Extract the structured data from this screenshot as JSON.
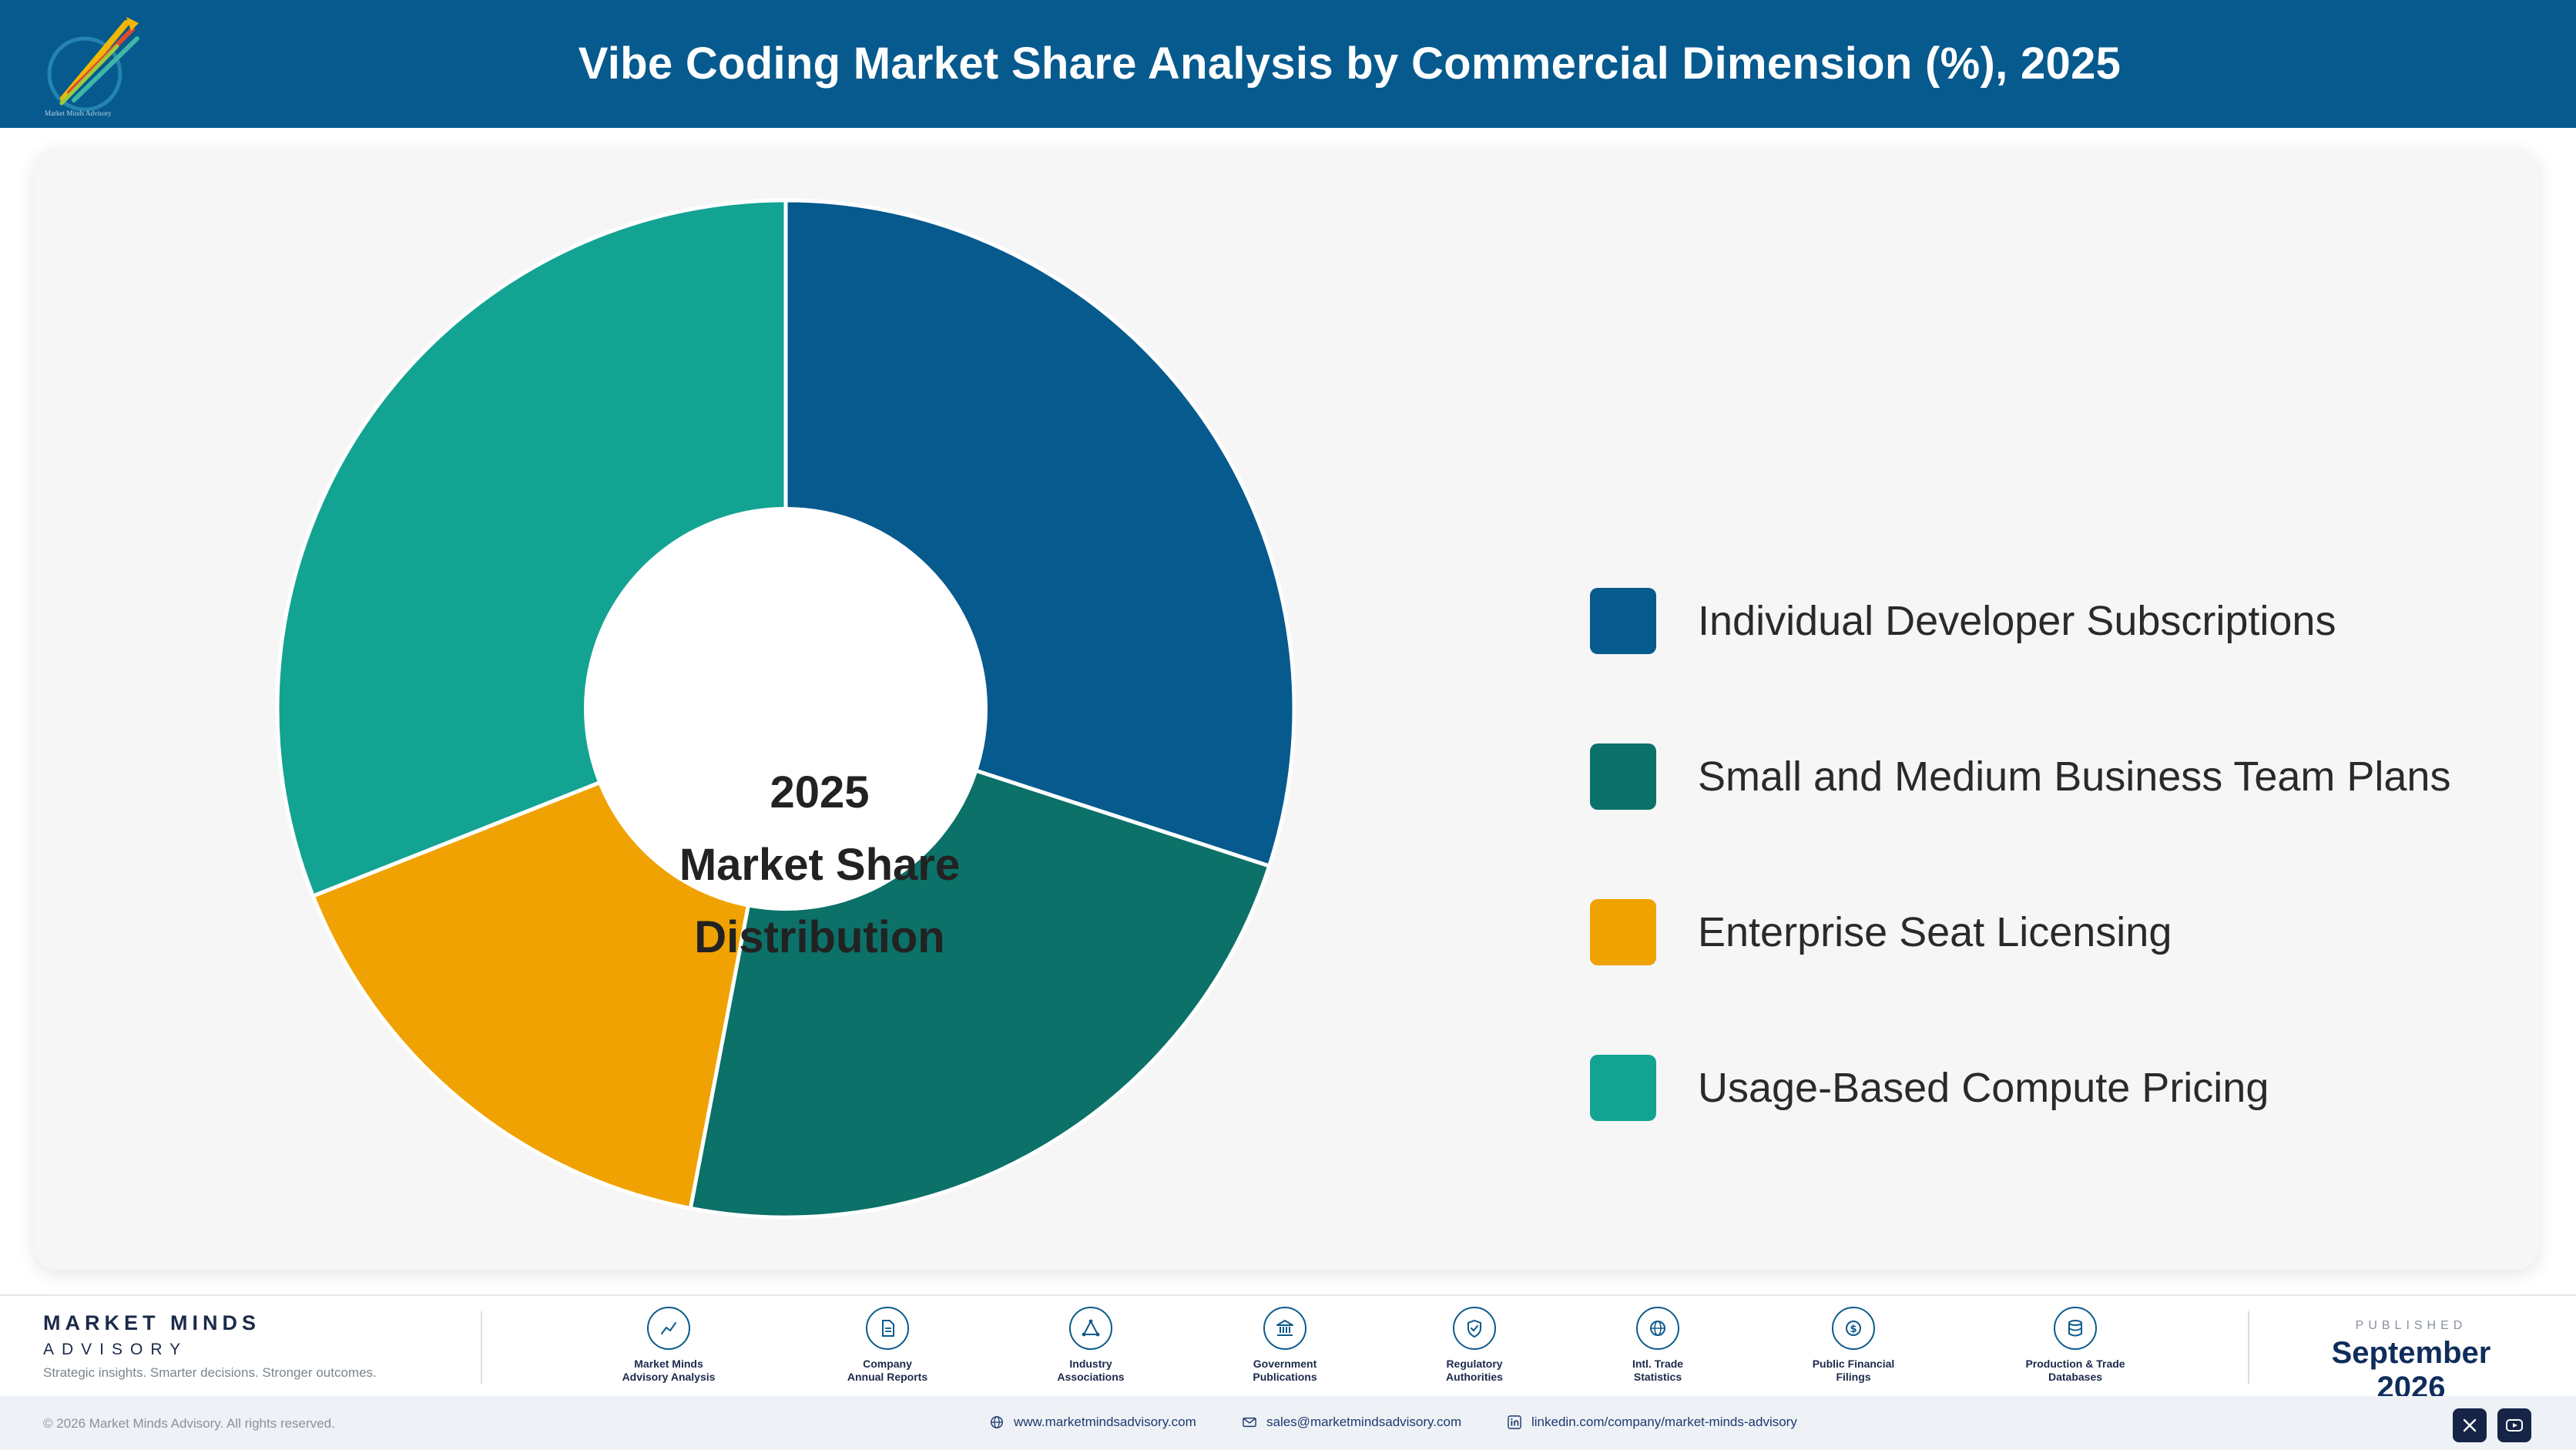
{
  "header": {
    "title": "Vibe Coding Market Share Analysis by Commercial Dimension (%), 2025",
    "logo_text": "Market Minds Advisory"
  },
  "center_label": {
    "line1": "2025",
    "line2": "Market Share",
    "line3": "Distribution"
  },
  "chart_data": {
    "type": "pie",
    "variant": "donut",
    "categories": [
      "Individual Developer Subscriptions",
      "Small and Medium Business Team Plans",
      "Enterprise Seat Licensing",
      "Usage-Based Compute Pricing"
    ],
    "values": [
      30,
      23,
      16,
      31
    ],
    "unit": "%",
    "colors": [
      "#065a8e",
      "#0c7168",
      "#f0a202",
      "#13a392"
    ],
    "legend_position": "right",
    "start_angle_deg": 0,
    "direction": "clockwise"
  },
  "footer": {
    "brand_name": "MARKET MINDS",
    "brand_sub": "ADVISORY",
    "tagline": "Strategic insights. Smarter decisions. Stronger outcomes.",
    "sources": [
      {
        "label": "Market Minds\nAdvisory Analysis",
        "icon": "trend-line-icon"
      },
      {
        "label": "Company\nAnnual Reports",
        "icon": "document-icon"
      },
      {
        "label": "Industry\nAssociations",
        "icon": "network-icon"
      },
      {
        "label": "Government\nPublications",
        "icon": "government-building-icon"
      },
      {
        "label": "Regulatory\nAuthorities",
        "icon": "shield-check-icon"
      },
      {
        "label": "Intl. Trade\nStatistics",
        "icon": "globe-icon"
      },
      {
        "label": "Public Financial\nFilings",
        "icon": "dollar-coin-icon"
      },
      {
        "label": "Production & Trade\nDatabases",
        "icon": "database-icon"
      }
    ],
    "published_label": "PUBLISHED",
    "published_date": "September 2026",
    "copyright": "© 2026 Market Minds Advisory. All rights reserved.",
    "website": "www.marketmindsadvisory.com",
    "email": "sales@marketmindsadvisory.com",
    "linkedin": "linkedin.com/company/market-minds-advisory",
    "social_icons": [
      "x-icon",
      "youtube-icon"
    ]
  }
}
